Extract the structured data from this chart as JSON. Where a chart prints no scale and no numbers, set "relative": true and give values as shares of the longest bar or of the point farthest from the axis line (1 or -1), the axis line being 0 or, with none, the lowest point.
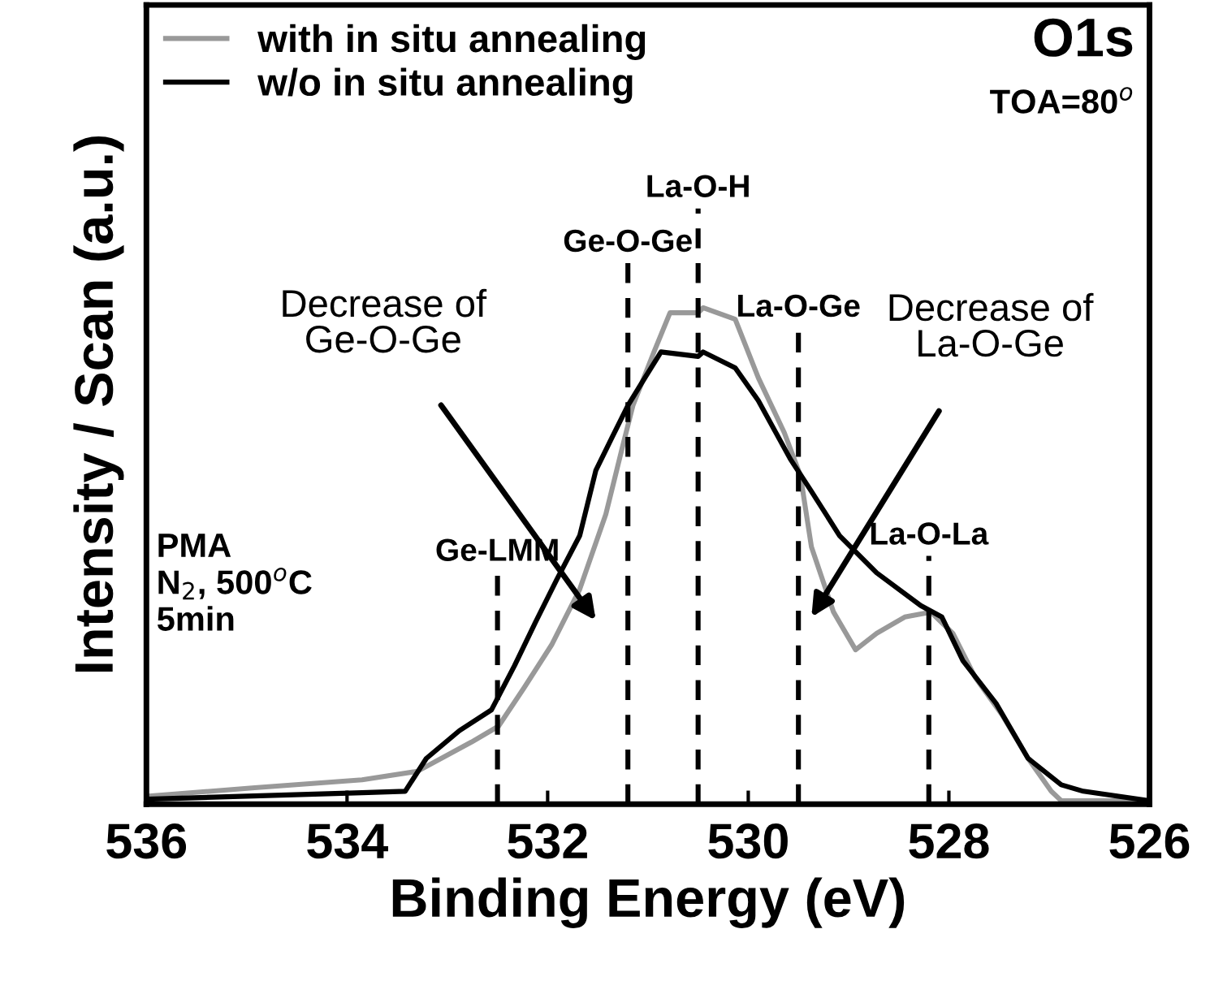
{
  "chart_data": {
    "type": "line",
    "relative": true,
    "xlabel": "Binding Energy (eV)",
    "ylabel": "Intensity / Scan (a.u.)",
    "xlim": [
      536,
      526
    ],
    "xticks": [
      536,
      534,
      532,
      530,
      528,
      526
    ],
    "tick_labels": "x",
    "grid": false,
    "legend": "top left",
    "marker": "none",
    "line_style": "solid",
    "series": [
      {
        "name": "with in situ annealing",
        "color": "#999999",
        "x": [
          536.0,
          534.92,
          533.85,
          533.3,
          532.76,
          532.49,
          532.23,
          531.96,
          531.68,
          531.42,
          531.26,
          531.15,
          530.94,
          530.78,
          530.5,
          530.45,
          530.13,
          529.9,
          529.64,
          529.48,
          529.37,
          529.15,
          528.93,
          528.72,
          528.44,
          528.18,
          527.96,
          527.74,
          527.47,
          527.21,
          526.98,
          526.88,
          526.0
        ],
        "values": [
          0.016,
          0.033,
          0.049,
          0.066,
          0.125,
          0.157,
          0.236,
          0.321,
          0.433,
          0.584,
          0.715,
          0.803,
          0.911,
          0.99,
          0.99,
          1.0,
          0.977,
          0.859,
          0.748,
          0.662,
          0.518,
          0.387,
          0.311,
          0.344,
          0.377,
          0.387,
          0.344,
          0.256,
          0.18,
          0.092,
          0.026,
          0.007,
          0.007
        ]
      },
      {
        "name": "w/o in situ annealing",
        "color": "#000000",
        "x": [
          536.0,
          533.85,
          533.42,
          533.21,
          532.88,
          532.56,
          532.33,
          532.12,
          531.91,
          531.68,
          531.52,
          531.36,
          531.2,
          531.03,
          530.87,
          530.5,
          530.45,
          530.13,
          529.9,
          529.58,
          529.37,
          529.09,
          528.72,
          528.28,
          528.07,
          527.86,
          527.53,
          527.21,
          526.88,
          526.66,
          526.01
        ],
        "values": [
          0.01,
          0.023,
          0.026,
          0.092,
          0.148,
          0.19,
          0.279,
          0.367,
          0.452,
          0.541,
          0.672,
          0.738,
          0.803,
          0.859,
          0.911,
          0.902,
          0.911,
          0.879,
          0.813,
          0.695,
          0.63,
          0.541,
          0.466,
          0.4,
          0.377,
          0.289,
          0.203,
          0.092,
          0.039,
          0.026,
          0.007
        ]
      }
    ],
    "ref_lines": [
      {
        "axis": "x",
        "value": 532.5,
        "label": "Ge-LMM",
        "color": "#000000",
        "line_style": "dashed"
      },
      {
        "axis": "x",
        "value": 531.2,
        "label": "Ge-O-Ge",
        "color": "#000000",
        "line_style": "dashed"
      },
      {
        "axis": "x",
        "value": 530.5,
        "label": "La-O-H",
        "color": "#000000",
        "line_style": "dashed"
      },
      {
        "axis": "x",
        "value": 529.5,
        "label": "La-O-Ge",
        "color": "#000000",
        "line_style": "dashed"
      },
      {
        "axis": "x",
        "value": 528.2,
        "label": "La-O-La",
        "color": "#000000",
        "line_style": "dashed"
      }
    ],
    "annotations": [
      "Decrease of\nGe-O-Ge",
      "Decrease of\nLa-O-Ge",
      "O1s",
      "TOA=80$^{o}$",
      "PMA\nN$_{2}$, 500$^{o}$C\n5min"
    ]
  }
}
